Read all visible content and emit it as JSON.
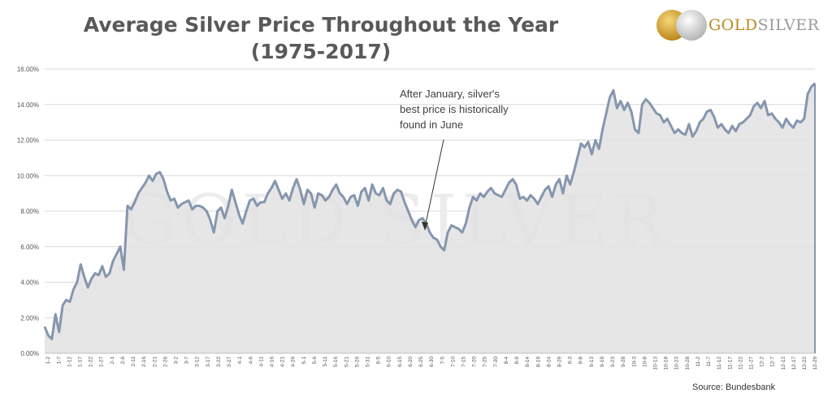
{
  "title_line1": "Average Silver Price Throughout the Year",
  "title_line2": "(1975-2017)",
  "logo": {
    "text_gold": "GOLD",
    "text_silver": "SILVER",
    "watermark": "GOLD SILVER"
  },
  "annotation": [
    "After January, silver's",
    "best price is historically",
    "found in June"
  ],
  "source": "Source: Bundesbank",
  "colors": {
    "line": "#8596ae",
    "fill": "#e2e2e2",
    "grid": "#d9d9d9",
    "title": "#595959"
  },
  "chart_data": {
    "type": "area",
    "title": "Average Silver Price Throughout the Year (1975-2017)",
    "ylim": [
      0,
      16
    ],
    "yticks": [
      "0.00%",
      "2.00%",
      "4.00%",
      "6.00%",
      "8.00%",
      "10.00%",
      "12.00%",
      "14.00%",
      "16.00%"
    ],
    "grid": "horizontal",
    "x_tick_labels": [
      "1-2",
      "1-7",
      "1-12",
      "1-17",
      "1-22",
      "1-27",
      "2-1",
      "2-6",
      "2-11",
      "2-16",
      "2-21",
      "2-26",
      "3-2",
      "3-7",
      "3-12",
      "3-17",
      "3-22",
      "3-27",
      "4-1",
      "4-6",
      "4-11",
      "4-16",
      "4-21",
      "4-26",
      "5-1",
      "5-6",
      "5-11",
      "5-16",
      "5-21",
      "5-26",
      "5-31",
      "6-5",
      "6-10",
      "6-15",
      "6-20",
      "6-25",
      "6-30",
      "7-5",
      "7-10",
      "7-15",
      "7-20",
      "7-25",
      "7-30",
      "8-4",
      "8-9",
      "8-14",
      "8-19",
      "8-24",
      "8-29",
      "9-3",
      "9-8",
      "9-13",
      "9-18",
      "9-23",
      "9-28",
      "10-3",
      "10-8",
      "10-13",
      "10-18",
      "10-23",
      "10-28",
      "11-2",
      "11-7",
      "11-12",
      "11-17",
      "11-22",
      "11-27",
      "12-2",
      "12-7",
      "12-12",
      "12-17",
      "12-22",
      "12-29"
    ],
    "series": [
      {
        "values": [
          1.5,
          1.0,
          0.8,
          2.2,
          1.2,
          2.7,
          3.0,
          2.9,
          3.6,
          4.0,
          5.0,
          4.3,
          3.7,
          4.2,
          4.5,
          4.4,
          4.9,
          4.3,
          4.5,
          5.2,
          5.6,
          6.0,
          4.7,
          8.3,
          8.1,
          8.5,
          9.0,
          9.3,
          9.6,
          10.0,
          9.7,
          10.1,
          10.2,
          9.8,
          9.1,
          8.6,
          8.7,
          8.2,
          8.4,
          8.5,
          8.6,
          8.1,
          8.3,
          8.3,
          8.2,
          8.0,
          7.5,
          6.8,
          8.0,
          8.2,
          7.6,
          8.3,
          9.2,
          8.5,
          7.8,
          7.3,
          8.0,
          8.6,
          8.7,
          8.3,
          8.5,
          8.5,
          9.0,
          9.3,
          9.7,
          9.2,
          8.7,
          9.0,
          8.6,
          9.3,
          9.8,
          9.2,
          8.4,
          9.2,
          9.0,
          8.2,
          9.0,
          8.9,
          8.6,
          8.8,
          9.2,
          9.5,
          9.0,
          8.8,
          8.4,
          8.8,
          8.9,
          8.3,
          9.1,
          9.3,
          8.6,
          9.5,
          9.0,
          8.9,
          9.3,
          8.6,
          8.4,
          9.0,
          9.2,
          9.1,
          8.5,
          8.0,
          7.5,
          7.1,
          7.5,
          7.6,
          7.3,
          6.8,
          6.5,
          6.4,
          6.0,
          5.8,
          6.8,
          7.2,
          7.1,
          7.0,
          6.8,
          7.3,
          8.2,
          8.8,
          8.6,
          9.0,
          8.8,
          9.1,
          9.3,
          9.0,
          8.9,
          8.8,
          9.2,
          9.6,
          9.8,
          9.5,
          8.7,
          8.8,
          8.6,
          8.9,
          8.7,
          8.4,
          8.8,
          9.2,
          9.4,
          8.8,
          9.5,
          9.8,
          9.0,
          10.0,
          9.5,
          10.2,
          11.0,
          11.8,
          11.6,
          11.9,
          11.2,
          12.0,
          11.5,
          12.6,
          13.5,
          14.4,
          14.8,
          13.8,
          14.2,
          13.7,
          14.1,
          13.6,
          12.6,
          12.4,
          14.0,
          14.3,
          14.1,
          13.8,
          13.5,
          13.4,
          13.0,
          13.2,
          12.8,
          12.4,
          12.6,
          12.4,
          12.3,
          12.9,
          12.2,
          12.5,
          13.0,
          13.2,
          13.6,
          13.7,
          13.3,
          12.7,
          12.9,
          12.6,
          12.4,
          12.8,
          12.5,
          12.9,
          13.0,
          13.2,
          13.4,
          13.9,
          14.1,
          13.8,
          14.2,
          13.4,
          13.5,
          13.2,
          13.0,
          12.7,
          13.2,
          12.9,
          12.7,
          13.1,
          13.0,
          13.2,
          14.6,
          15.0,
          15.2
        ]
      }
    ]
  }
}
